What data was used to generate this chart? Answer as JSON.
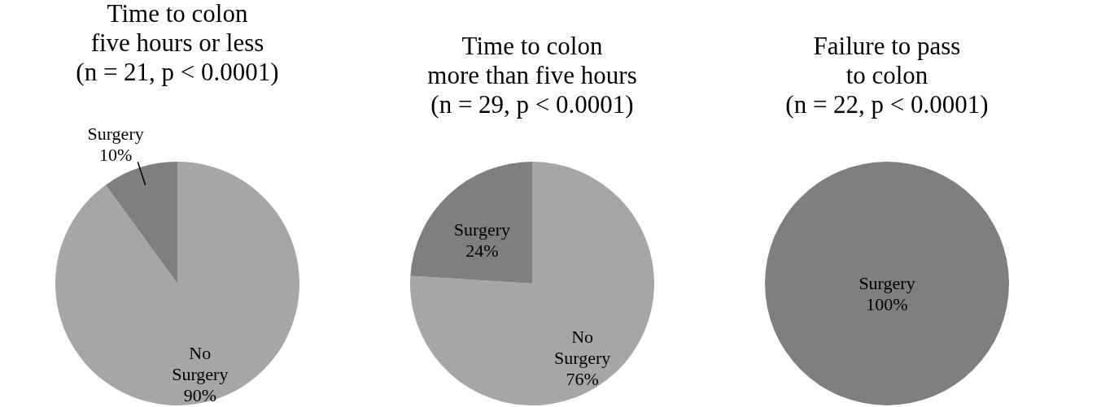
{
  "chart_data": [
    {
      "type": "pie",
      "title": "Time to colon\nfive hours or less\n(n = 21, p < 0.0001)",
      "categories": [
        "No Surgery",
        "Surgery"
      ],
      "values": [
        90,
        10
      ],
      "value_labels": [
        "90%",
        "10%"
      ],
      "colors": [
        "#a6a6a6",
        "#7f7f7f"
      ],
      "legend": false
    },
    {
      "type": "pie",
      "title": "Time to colon\nmore than five hours\n(n = 29, p < 0.0001)",
      "categories": [
        "No Surgery",
        "Surgery"
      ],
      "values": [
        76,
        24
      ],
      "value_labels": [
        "76%",
        "24%"
      ],
      "colors": [
        "#a6a6a6",
        "#7f7f7f"
      ],
      "legend": false
    },
    {
      "type": "pie",
      "title": "Failure to pass\nto colon\n(n = 22, p < 0.0001)",
      "categories": [
        "Surgery"
      ],
      "values": [
        100
      ],
      "value_labels": [
        "100%"
      ],
      "colors": [
        "#7f7f7f"
      ],
      "legend": false
    }
  ]
}
